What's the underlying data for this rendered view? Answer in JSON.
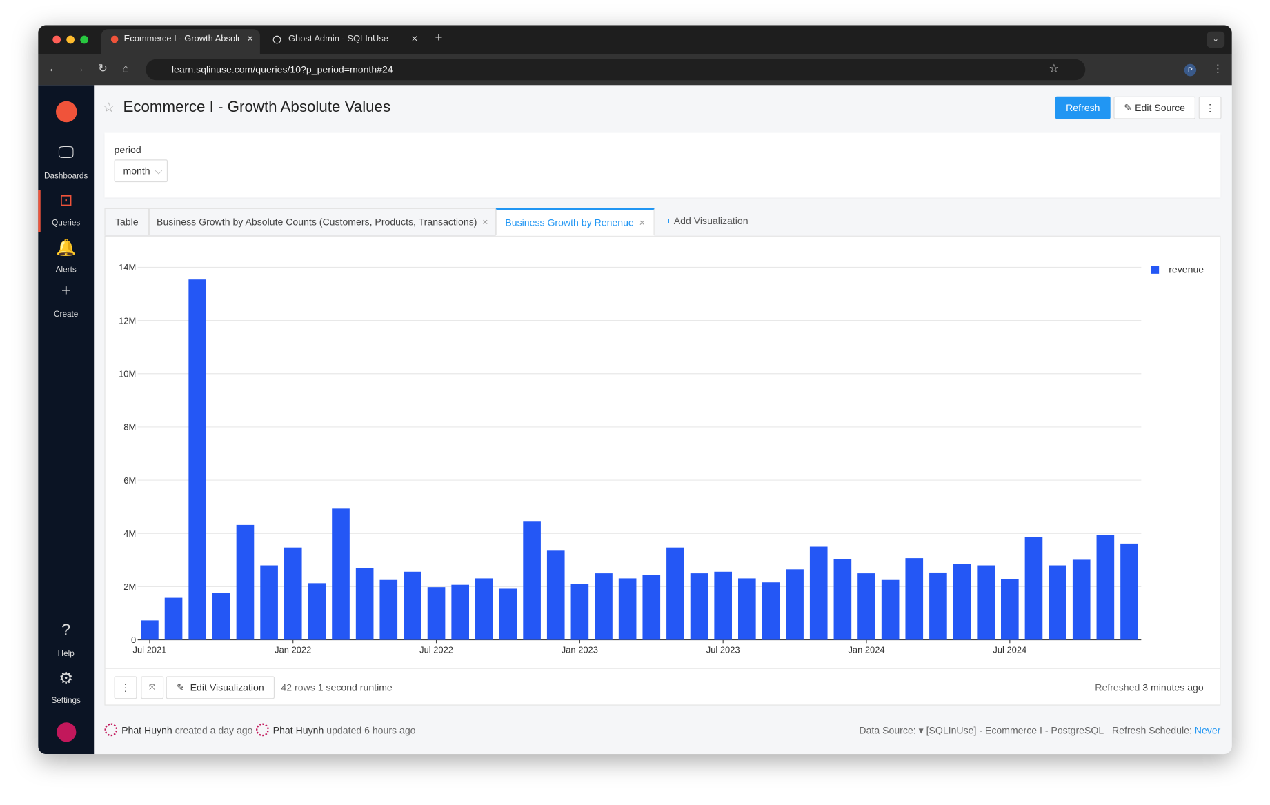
{
  "browser": {
    "tabs": [
      "Ecommerce I - Growth Absolu",
      "Ghost Admin - SQLInUse"
    ],
    "url": "learn.sqlinuse.com/queries/10?p_period=month#24",
    "profile": "P"
  },
  "sidebar": [
    "Dashboards",
    "Queries",
    "Alerts",
    "Create",
    "Help",
    "Settings"
  ],
  "header": {
    "title": "Ecommerce I - Growth Absolute Values",
    "refresh": "Refresh",
    "edit_source": "Edit Source"
  },
  "parameter": {
    "label": "period",
    "value": "month"
  },
  "viz_tabs": [
    "Table",
    "Business Growth by Absolute Counts (Customers, Products, Transactions)",
    "Business Growth by Renenue",
    "Add Visualization"
  ],
  "chart_data": {
    "type": "bar",
    "x": [
      "2021-07",
      "2021-08",
      "2021-09",
      "2021-10",
      "2021-11",
      "2021-12",
      "2022-01",
      "2022-02",
      "2022-03",
      "2022-04",
      "2022-05",
      "2022-06",
      "2022-07",
      "2022-08",
      "2022-09",
      "2022-10",
      "2022-11",
      "2022-12",
      "2023-01",
      "2023-02",
      "2023-03",
      "2023-04",
      "2023-05",
      "2023-06",
      "2023-07",
      "2023-08",
      "2023-09",
      "2023-10",
      "2023-11",
      "2023-12",
      "2024-01",
      "2024-02",
      "2024-03",
      "2024-04",
      "2024-05",
      "2024-06",
      "2024-07",
      "2024-08",
      "2024-09",
      "2024-10",
      "2024-11",
      "2024-12"
    ],
    "series": [
      {
        "name": "revenue",
        "color": "#2457f5",
        "values": [
          730000,
          1580000,
          13540000,
          1770000,
          4320000,
          2800000,
          3470000,
          2130000,
          4930000,
          2710000,
          2250000,
          2560000,
          1980000,
          2070000,
          2310000,
          1920000,
          4440000,
          3350000,
          2100000,
          2500000,
          2310000,
          2430000,
          3470000,
          2500000,
          2560000,
          2310000,
          2160000,
          2650000,
          3500000,
          3040000,
          2500000,
          2250000,
          3070000,
          2530000,
          2860000,
          2800000,
          2280000,
          3860000,
          2800000,
          3010000,
          3930000,
          3620000
        ]
      }
    ],
    "xticks": [
      {
        "value": "2021-07",
        "label": "Jul 2021"
      },
      {
        "value": "2022-01",
        "label": "Jan 2022"
      },
      {
        "value": "2022-07",
        "label": "Jul 2022"
      },
      {
        "value": "2023-01",
        "label": "Jan 2023"
      },
      {
        "value": "2023-07",
        "label": "Jul 2023"
      },
      {
        "value": "2024-01",
        "label": "Jan 2024"
      },
      {
        "value": "2024-07",
        "label": "Jul 2024"
      }
    ],
    "ylim": [
      0,
      14000000
    ],
    "yticks": [
      0,
      {
        "value": 2000000,
        "label": "2M"
      },
      {
        "value": 4000000,
        "label": "4M"
      },
      {
        "value": 6000000,
        "label": "6M"
      },
      {
        "value": 8000000,
        "label": "8M"
      },
      {
        "value": 10000000,
        "label": "10M"
      },
      {
        "value": 12000000,
        "label": "12M"
      },
      {
        "value": 14000000,
        "label": "14M"
      }
    ],
    "grid": true,
    "legend": "top-right"
  },
  "card_footer": {
    "edit": "Edit Visualization",
    "rows": "42 rows",
    "runtime": "1 second runtime",
    "refreshed": "Refreshed",
    "ago": "3 minutes ago"
  },
  "meta": {
    "author": "Phat Huynh",
    "created": "created a day ago",
    "updater": "Phat Huynh",
    "updated": "updated 6 hours ago",
    "ds_label": "Data Source:",
    "ds": "[SQLInUse] - Ecommerce I - PostgreSQL",
    "sched_label": "Refresh Schedule:",
    "sched": "Never"
  }
}
